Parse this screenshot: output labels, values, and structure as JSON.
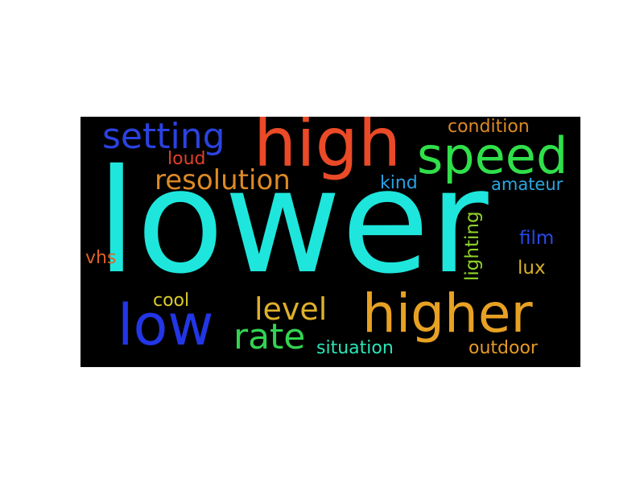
{
  "words": [
    {
      "text": "lower",
      "color": "#1ee6dc"
    },
    {
      "text": "high",
      "color": "#ea4a27"
    },
    {
      "text": "speed",
      "color": "#2fe04a"
    },
    {
      "text": "setting",
      "color": "#2b42e0"
    },
    {
      "text": "higher",
      "color": "#e7a123"
    },
    {
      "text": "low",
      "color": "#2236e6"
    },
    {
      "text": "rate",
      "color": "#32d451"
    },
    {
      "text": "level",
      "color": "#dfb02a"
    },
    {
      "text": "resolution",
      "color": "#dc8a26"
    },
    {
      "text": "condition",
      "color": "#dc8a26"
    },
    {
      "text": "loud",
      "color": "#e0402a"
    },
    {
      "text": "kind",
      "color": "#2aa0e6"
    },
    {
      "text": "amateur",
      "color": "#2aa8e0"
    },
    {
      "text": "lighting",
      "color": "#8ed42a"
    },
    {
      "text": "film",
      "color": "#2a48e6"
    },
    {
      "text": "lux",
      "color": "#d8b02a"
    },
    {
      "text": "vhs",
      "color": "#e0602a"
    },
    {
      "text": "cool",
      "color": "#dccb2a"
    },
    {
      "text": "situation",
      "color": "#2ae6b8"
    },
    {
      "text": "outdoor",
      "color": "#e69a28"
    }
  ]
}
